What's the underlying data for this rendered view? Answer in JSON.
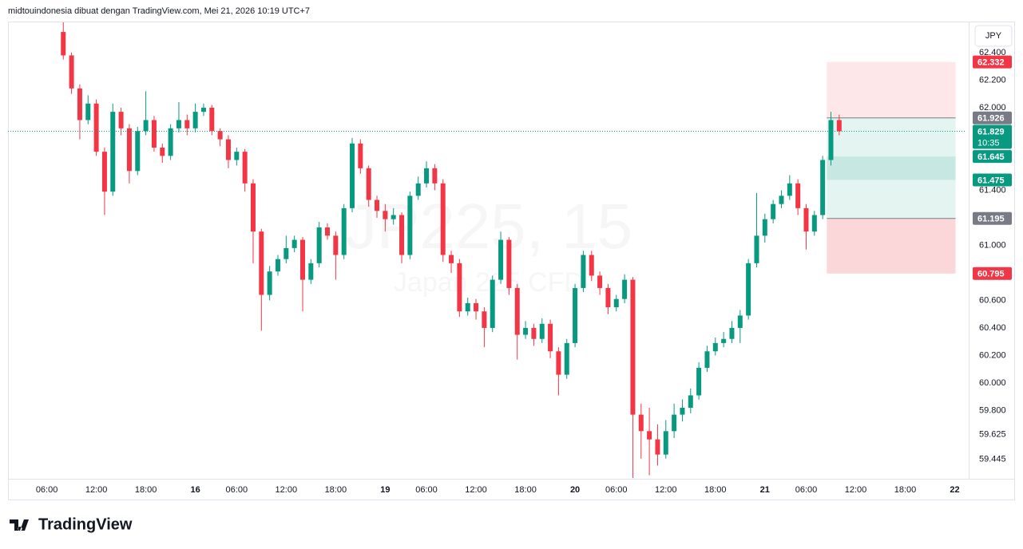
{
  "header": "midtouindonesia dibuat dengan TradingView.com, Mei 21, 2026 10:19 UTC+7",
  "currency_button": "JPY",
  "footer_brand": "TradingView",
  "chart_data": {
    "type": "candlestick",
    "watermark": "JP225, 15",
    "watermark_sub": "Japan 225 CFD",
    "up_color": "#089981",
    "down_color": "#f23645",
    "xlim": [
      -4.7,
      111.4
    ],
    "xticks": [
      {
        "value": 0,
        "label": "06:00"
      },
      {
        "value": 6,
        "label": "12:00"
      },
      {
        "value": 12,
        "label": "18:00"
      },
      {
        "value": 18,
        "label": "16"
      },
      {
        "value": 23,
        "label": "06:00"
      },
      {
        "value": 29,
        "label": "12:00"
      },
      {
        "value": 35,
        "label": "18:00"
      },
      {
        "value": 41,
        "label": "19"
      },
      {
        "value": 46,
        "label": "06:00"
      },
      {
        "value": 52,
        "label": "12:00"
      },
      {
        "value": 58,
        "label": "18:00"
      },
      {
        "value": 64,
        "label": "20"
      },
      {
        "value": 69,
        "label": "06:00"
      },
      {
        "value": 75,
        "label": "12:00"
      },
      {
        "value": 81,
        "label": "18:00"
      },
      {
        "value": 87,
        "label": "21"
      },
      {
        "value": 92,
        "label": "06:00"
      },
      {
        "value": 98,
        "label": "12:00"
      },
      {
        "value": 104,
        "label": "18:00"
      },
      {
        "value": 110,
        "label": "22"
      }
    ],
    "ylim": [
      59.304,
      62.62
    ],
    "yticks": [
      {
        "value": 62.4,
        "label": "62.400"
      },
      {
        "value": 62.2,
        "label": "62.200"
      },
      {
        "value": 62.0,
        "label": "62.000"
      },
      {
        "value": 61.4,
        "label": "61.400"
      },
      {
        "value": 61.0,
        "label": "61.000"
      },
      {
        "value": 60.6,
        "label": "60.600"
      },
      {
        "value": 60.4,
        "label": "60.400"
      },
      {
        "value": 60.2,
        "label": "60.200"
      },
      {
        "value": 60.0,
        "label": "60.000"
      },
      {
        "value": 59.8,
        "label": "59.800"
      },
      {
        "value": 59.625,
        "label": "59.625"
      },
      {
        "value": 59.445,
        "label": "59.445"
      }
    ],
    "grid": false,
    "x": [
      2,
      3,
      4,
      5,
      6,
      7,
      8,
      9,
      10,
      11,
      12,
      13,
      14,
      15,
      16,
      17,
      18,
      19,
      20,
      21,
      22,
      23,
      24,
      25,
      26,
      27,
      28,
      29,
      30,
      31,
      32,
      33,
      34,
      35,
      36,
      37,
      38,
      39,
      40,
      41,
      42,
      43,
      44,
      45,
      46,
      47,
      48,
      49,
      50,
      51,
      52,
      53,
      54,
      55,
      56,
      57,
      58,
      59,
      60,
      61,
      62,
      63,
      64,
      65,
      66,
      67,
      68,
      69,
      70,
      71,
      72,
      73,
      74,
      75,
      76,
      77,
      78,
      79,
      80,
      81,
      82,
      83,
      84,
      85,
      86,
      87,
      88,
      89,
      90,
      91,
      92,
      93,
      94,
      95,
      96
    ],
    "open": [
      62.55,
      62.38,
      62.14,
      61.91,
      62.03,
      61.68,
      61.39,
      61.97,
      61.85,
      61.54,
      61.83,
      61.91,
      61.71,
      61.65,
      61.85,
      61.91,
      61.85,
      61.97,
      62.0,
      61.83,
      61.77,
      61.62,
      61.68,
      61.45,
      61.1,
      60.64,
      60.81,
      60.9,
      60.98,
      61.04,
      60.75,
      60.87,
      61.13,
      61.07,
      60.93,
      61.27,
      61.74,
      61.56,
      61.33,
      61.25,
      61.19,
      61.22,
      60.93,
      61.36,
      61.45,
      61.56,
      61.45,
      60.93,
      60.87,
      60.52,
      60.58,
      60.52,
      60.4,
      60.75,
      61.04,
      60.69,
      60.35,
      60.4,
      60.32,
      60.43,
      60.23,
      60.06,
      60.29,
      60.69,
      60.93,
      60.78,
      60.69,
      60.55,
      60.61,
      60.75,
      59.77,
      59.65,
      59.59,
      59.48,
      59.65,
      59.77,
      59.82,
      59.91,
      60.11,
      60.23,
      60.29,
      60.32,
      60.4,
      60.49,
      60.87,
      61.07,
      61.19,
      61.3,
      61.36,
      61.45,
      61.27,
      61.1,
      61.22,
      61.62,
      61.91
    ],
    "high": [
      62.62,
      62.4,
      62.17,
      62.09,
      62.06,
      61.71,
      62.03,
      62.0,
      61.88,
      61.86,
      62.12,
      61.94,
      61.74,
      61.88,
      62.04,
      61.95,
      62.03,
      62.03,
      62.02,
      61.85,
      61.8,
      61.71,
      61.7,
      61.48,
      61.12,
      60.85,
      60.93,
      61.07,
      61.07,
      61.06,
      60.9,
      61.17,
      61.16,
      61.1,
      61.3,
      61.78,
      61.77,
      61.58,
      61.36,
      61.3,
      61.27,
      61.24,
      61.39,
      61.5,
      61.61,
      61.59,
      61.48,
      60.96,
      60.9,
      60.62,
      60.61,
      60.55,
      60.78,
      61.1,
      61.06,
      60.72,
      60.45,
      60.43,
      60.47,
      60.46,
      60.26,
      60.32,
      60.72,
      60.96,
      60.96,
      60.81,
      60.72,
      60.64,
      60.79,
      60.77,
      59.85,
      59.82,
      59.7,
      59.73,
      59.85,
      59.88,
      59.96,
      60.15,
      60.27,
      60.33,
      60.37,
      60.45,
      60.53,
      60.9,
      61.38,
      61.23,
      61.33,
      61.4,
      61.51,
      61.48,
      61.3,
      61.25,
      61.65,
      61.97,
      61.95
    ],
    "low": [
      62.35,
      62.1,
      61.77,
      61.88,
      61.65,
      61.22,
      61.36,
      61.8,
      61.45,
      61.51,
      61.8,
      61.68,
      61.6,
      61.62,
      61.82,
      61.8,
      61.82,
      61.94,
      61.8,
      61.72,
      61.56,
      61.58,
      61.39,
      60.87,
      60.38,
      60.6,
      60.78,
      60.87,
      60.95,
      60.52,
      60.72,
      60.84,
      61.04,
      60.75,
      60.9,
      61.24,
      61.52,
      61.28,
      61.2,
      61.1,
      61.15,
      60.87,
      60.9,
      61.33,
      61.42,
      61.4,
      60.88,
      60.8,
      60.48,
      60.49,
      60.46,
      60.26,
      60.37,
      60.72,
      60.64,
      60.17,
      60.32,
      60.27,
      60.29,
      60.18,
      59.91,
      60.03,
      60.26,
      60.66,
      60.74,
      60.64,
      60.5,
      60.52,
      60.58,
      59.31,
      59.45,
      59.33,
      59.4,
      59.45,
      59.6,
      59.72,
      59.78,
      59.88,
      60.08,
      60.2,
      60.26,
      60.29,
      60.29,
      60.46,
      60.84,
      61.02,
      61.16,
      61.27,
      61.33,
      61.22,
      60.97,
      61.07,
      61.19,
      61.58,
      61.8
    ],
    "close": [
      62.38,
      62.14,
      61.91,
      62.03,
      61.68,
      61.39,
      61.97,
      61.85,
      61.54,
      61.83,
      61.91,
      61.71,
      61.65,
      61.85,
      61.91,
      61.85,
      61.97,
      62.0,
      61.83,
      61.77,
      61.62,
      61.68,
      61.45,
      61.1,
      60.64,
      60.81,
      60.9,
      60.98,
      61.04,
      60.75,
      60.87,
      61.13,
      61.07,
      60.93,
      61.27,
      61.74,
      61.56,
      61.33,
      61.25,
      61.19,
      61.22,
      60.93,
      61.36,
      61.45,
      61.56,
      61.45,
      60.93,
      60.87,
      60.52,
      60.58,
      60.52,
      60.4,
      60.75,
      61.04,
      60.69,
      60.35,
      60.4,
      60.32,
      60.43,
      60.23,
      60.06,
      60.29,
      60.69,
      60.93,
      60.78,
      60.69,
      60.55,
      60.61,
      60.75,
      59.77,
      59.65,
      59.59,
      59.48,
      59.65,
      59.77,
      59.82,
      59.91,
      60.11,
      60.23,
      60.29,
      60.32,
      60.4,
      60.49,
      60.87,
      61.07,
      61.19,
      61.3,
      61.36,
      61.45,
      61.27,
      61.1,
      61.22,
      61.62,
      61.91,
      61.829
    ],
    "last_price": 61.829,
    "countdown": "10:35",
    "price_labels": [
      {
        "value": 62.332,
        "color": "#f23645"
      },
      {
        "value": 61.926,
        "color": "#787b86"
      },
      {
        "value": 61.645,
        "color": "#089981"
      },
      {
        "value": 61.475,
        "color": "#089981"
      },
      {
        "value": 61.195,
        "color": "#787b86"
      },
      {
        "value": 60.795,
        "color": "#f23645"
      }
    ],
    "position_x": [
      94.5,
      110.1
    ],
    "zones": [
      {
        "from": 62.332,
        "to": 61.926,
        "color": "rgba(242,54,69,0.12)"
      },
      {
        "from": 61.926,
        "to": 61.195,
        "color": "rgba(8,153,129,0.11)"
      },
      {
        "from": 61.645,
        "to": 61.475,
        "color": "rgba(8,153,129,0.13)"
      },
      {
        "from": 61.195,
        "to": 60.795,
        "color": "rgba(242,54,69,0.2)"
      }
    ],
    "position_lines": [
      61.926,
      61.195
    ]
  }
}
